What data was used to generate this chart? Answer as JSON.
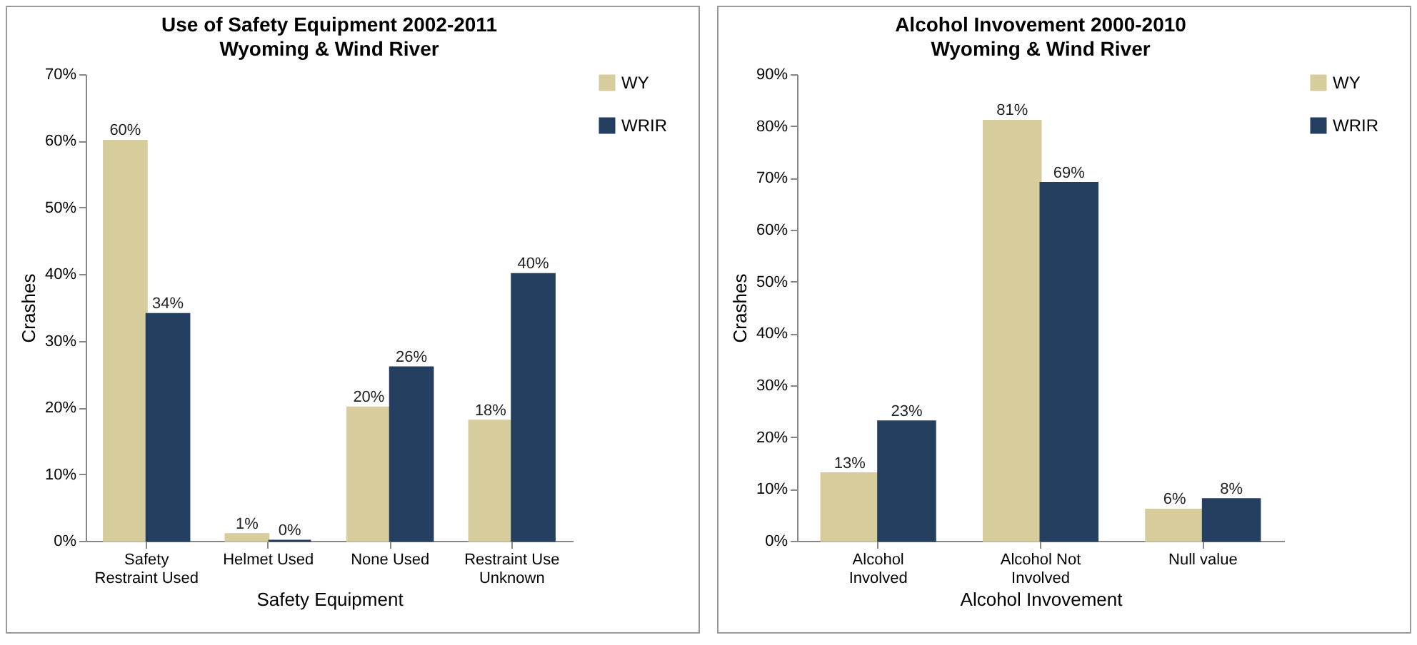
{
  "chart_data": [
    {
      "type": "bar",
      "title": "Use of Safety Equipment 2002-2011",
      "subtitle": "Wyoming & Wind River",
      "xlabel": "Safety Equipment",
      "ylabel": "Crashes",
      "categories": [
        "Safety Restraint Used",
        "Helmet Used",
        "None Used",
        "Restraint Use Unknown"
      ],
      "series": [
        {
          "name": "WY",
          "color": "#d6cc9c",
          "values": [
            60,
            1,
            20,
            18
          ],
          "value_labels": [
            "60%",
            "1%",
            "20%",
            "18%"
          ]
        },
        {
          "name": "WRIR",
          "color": "#243f60",
          "values": [
            34,
            0,
            26,
            40
          ],
          "value_labels": [
            "34%",
            "0%",
            "26%",
            "40%"
          ]
        }
      ],
      "ylim": [
        0,
        70
      ],
      "yticks": [
        {
          "value": 0,
          "label": "0%"
        },
        {
          "value": 10,
          "label": "10%"
        },
        {
          "value": 20,
          "label": "20%"
        },
        {
          "value": 30,
          "label": "30%"
        },
        {
          "value": 40,
          "label": "40%"
        },
        {
          "value": 50,
          "label": "50%"
        },
        {
          "value": 60,
          "label": "60%"
        },
        {
          "value": 70,
          "label": "70%"
        }
      ],
      "grid": false,
      "legend": "right"
    },
    {
      "type": "bar",
      "title": "Alcohol Invovement 2000-2010",
      "subtitle": "Wyoming & Wind River",
      "xlabel": "Alcohol Invovement",
      "ylabel": "Crashes",
      "categories": [
        "Alcohol Involved",
        "Alcohol Not Involved",
        "Null value"
      ],
      "series": [
        {
          "name": "WY",
          "color": "#d6cc9c",
          "values": [
            13,
            81,
            6
          ],
          "value_labels": [
            "13%",
            "81%",
            "6%"
          ]
        },
        {
          "name": "WRIR",
          "color": "#243f60",
          "values": [
            23,
            69,
            8
          ],
          "value_labels": [
            "23%",
            "69%",
            "8%"
          ]
        }
      ],
      "ylim": [
        0,
        90
      ],
      "yticks": [
        {
          "value": 0,
          "label": "0%"
        },
        {
          "value": 10,
          "label": "10%"
        },
        {
          "value": 20,
          "label": "20%"
        },
        {
          "value": 30,
          "label": "30%"
        },
        {
          "value": 40,
          "label": "40%"
        },
        {
          "value": 50,
          "label": "50%"
        },
        {
          "value": 60,
          "label": "60%"
        },
        {
          "value": 70,
          "label": "70%"
        },
        {
          "value": 80,
          "label": "80%"
        },
        {
          "value": 90,
          "label": "90%"
        }
      ],
      "grid": false,
      "legend": "right"
    }
  ]
}
